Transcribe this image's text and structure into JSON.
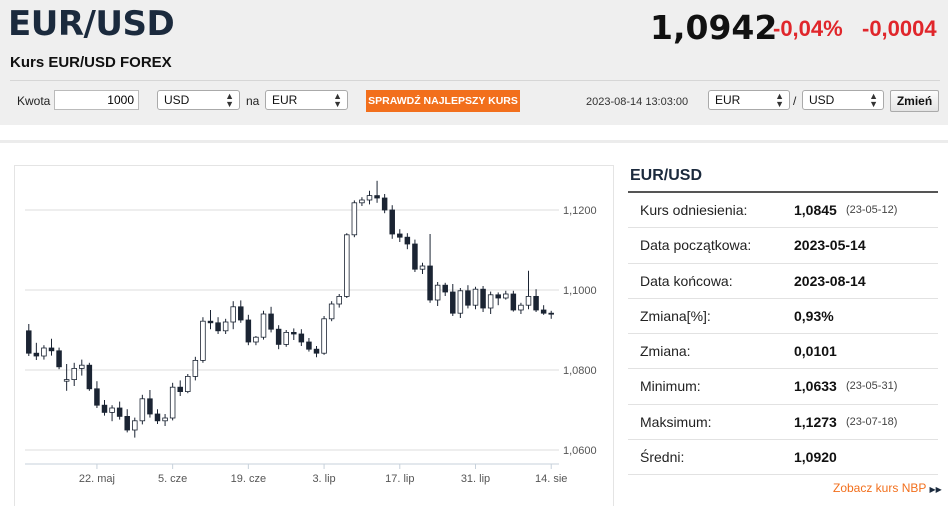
{
  "header": {
    "pair": "EUR/USD",
    "subtitle": "Kurs EUR/USD FOREX",
    "rate": "1,0942",
    "change_pct": "-0,04%",
    "change_abs": "-0,0004"
  },
  "converter": {
    "amount_label": "Kwota",
    "amount_value": "1000",
    "from_currency": "USD",
    "to_label": "na",
    "to_currency": "EUR",
    "check_button": "SPRAWDŹ NAJLEPSZY KURS",
    "timestamp": "2023-08-14 13:03:00",
    "pair_from": "EUR",
    "pair_sep": "/",
    "pair_to": "USD",
    "change_button": "Zmień"
  },
  "stats": {
    "title": "EUR/USD",
    "rows": [
      {
        "label": "Kurs odniesienia:",
        "value": "1,0845",
        "date": "(23-05-12)"
      },
      {
        "label": "Data początkowa:",
        "value": "2023-05-14",
        "date": ""
      },
      {
        "label": "Data końcowa:",
        "value": "2023-08-14",
        "date": ""
      },
      {
        "label": "Zmiana[%]:",
        "value": "0,93%",
        "date": ""
      },
      {
        "label": "Zmiana:",
        "value": "0,0101",
        "date": ""
      },
      {
        "label": "Minimum:",
        "value": "1,0633",
        "date": "(23-05-31)"
      },
      {
        "label": "Maksimum:",
        "value": "1,1273",
        "date": "(23-07-18)"
      },
      {
        "label": "Średni:",
        "value": "1,0920",
        "date": ""
      }
    ],
    "link": "Zobacz kurs NBP",
    "link_icon": "double-chevron-right-icon"
  },
  "colors": {
    "accent": "#f26f1c",
    "negative": "#e0262b",
    "candle_down": "#1b2433",
    "candle_up": "#ffffff"
  },
  "chart_data": {
    "type": "candlestick",
    "y_ticks": [
      "1,0600",
      "1,0800",
      "1,1000",
      "1,1200"
    ],
    "y_tick_values": [
      1.06,
      1.08,
      1.1,
      1.12
    ],
    "ylim": [
      1.0565,
      1.1285
    ],
    "x_tick_labels": [
      "22. maj",
      "5. cze",
      "19. cze",
      "3. lip",
      "17. lip",
      "31. lip",
      "14. sie"
    ],
    "x_tick_index": [
      9,
      19,
      29,
      39,
      49,
      59,
      69
    ],
    "grid": true,
    "candles": [
      [
        1.0898,
        1.0915,
        1.0835,
        1.0842
      ],
      [
        1.0842,
        1.0868,
        1.0825,
        1.0835
      ],
      [
        1.0835,
        1.0862,
        1.0826,
        1.0855
      ],
      [
        1.0855,
        1.0878,
        1.0836,
        1.0848
      ],
      [
        1.0848,
        1.0856,
        1.0802,
        1.0808
      ],
      [
        1.0772,
        1.0815,
        1.0748,
        1.0776
      ],
      [
        1.0776,
        1.0818,
        1.076,
        1.0804
      ],
      [
        1.0804,
        1.0826,
        1.0786,
        1.0812
      ],
      [
        1.0812,
        1.0818,
        1.0748,
        1.0753
      ],
      [
        1.0753,
        1.0772,
        1.0705,
        1.0712
      ],
      [
        1.0712,
        1.0725,
        1.0686,
        1.0694
      ],
      [
        1.0694,
        1.0712,
        1.0672,
        1.0705
      ],
      [
        1.0705,
        1.0721,
        1.0676,
        1.0684
      ],
      [
        1.0684,
        1.0702,
        1.0644,
        1.065
      ],
      [
        1.065,
        1.0681,
        1.0631,
        1.0673
      ],
      [
        1.0673,
        1.0738,
        1.0664,
        1.0728
      ],
      [
        1.0728,
        1.075,
        1.0681,
        1.069
      ],
      [
        1.069,
        1.0702,
        1.0665,
        1.0673
      ],
      [
        1.0673,
        1.069,
        1.066,
        1.068
      ],
      [
        1.068,
        1.0768,
        1.0674,
        1.0757
      ],
      [
        1.0757,
        1.0774,
        1.0735,
        1.0746
      ],
      [
        1.0746,
        1.079,
        1.0742,
        1.0784
      ],
      [
        1.0784,
        1.0833,
        1.0774,
        1.0824
      ],
      [
        1.0824,
        1.0932,
        1.0818,
        1.0922
      ],
      [
        1.0922,
        1.095,
        1.0902,
        1.0918
      ],
      [
        1.0918,
        1.0932,
        1.089,
        1.0898
      ],
      [
        1.0898,
        1.0928,
        1.089,
        1.092
      ],
      [
        1.092,
        1.0972,
        1.0902,
        1.0958
      ],
      [
        1.0958,
        1.0974,
        1.0918,
        1.0925
      ],
      [
        1.0925,
        1.0938,
        1.0862,
        1.087
      ],
      [
        1.087,
        1.0885,
        1.0862,
        1.0882
      ],
      [
        1.0882,
        1.0948,
        1.0876,
        1.094
      ],
      [
        1.094,
        1.0958,
        1.0894,
        1.0902
      ],
      [
        1.0902,
        1.0912,
        1.0852,
        1.0864
      ],
      [
        1.0864,
        1.09,
        1.0858,
        1.0894
      ],
      [
        1.0894,
        1.0904,
        1.0875,
        1.089
      ],
      [
        1.089,
        1.0902,
        1.086,
        1.087
      ],
      [
        1.087,
        1.088,
        1.0846,
        1.0852
      ],
      [
        1.0852,
        1.086,
        1.0832,
        1.0842
      ],
      [
        1.0842,
        1.0935,
        1.0838,
        1.0928
      ],
      [
        1.0928,
        1.0972,
        1.0922,
        1.0965
      ],
      [
        1.0965,
        1.099,
        1.0956,
        1.0984
      ],
      [
        1.0984,
        1.1142,
        1.098,
        1.1138
      ],
      [
        1.1138,
        1.1224,
        1.1132,
        1.1218
      ],
      [
        1.1218,
        1.1232,
        1.121,
        1.1225
      ],
      [
        1.1225,
        1.1248,
        1.1214,
        1.1236
      ],
      [
        1.1236,
        1.1273,
        1.1218,
        1.123
      ],
      [
        1.123,
        1.124,
        1.1192,
        1.12
      ],
      [
        1.12,
        1.1212,
        1.1128,
        1.114
      ],
      [
        1.114,
        1.1152,
        1.112,
        1.1132
      ],
      [
        1.1132,
        1.1142,
        1.1102,
        1.1115
      ],
      [
        1.1115,
        1.1126,
        1.1045,
        1.1052
      ],
      [
        1.1052,
        1.1068,
        1.104,
        1.106
      ],
      [
        1.106,
        1.114,
        1.0968,
        1.0975
      ],
      [
        1.0975,
        1.102,
        1.096,
        1.1012
      ],
      [
        1.1012,
        1.1018,
        1.0985,
        1.0995
      ],
      [
        1.0995,
        1.1015,
        1.0935,
        1.0942
      ],
      [
        1.0942,
        1.1005,
        1.093,
        1.0998
      ],
      [
        1.0998,
        1.1012,
        1.0954,
        1.0962
      ],
      [
        1.0962,
        1.1008,
        1.0952,
        1.1002
      ],
      [
        1.1002,
        1.101,
        1.0945,
        1.0955
      ],
      [
        1.0955,
        1.0996,
        1.094,
        1.0988
      ],
      [
        1.0988,
        1.0994,
        1.0962,
        1.098
      ],
      [
        1.098,
        1.0998,
        1.0976,
        1.099
      ],
      [
        1.099,
        1.0998,
        1.0946,
        1.095
      ],
      [
        1.095,
        1.0968,
        1.094,
        1.0962
      ],
      [
        1.0962,
        1.1048,
        1.0952,
        1.0984
      ],
      [
        1.0984,
        1.1002,
        1.0945,
        1.095
      ],
      [
        1.095,
        1.0962,
        1.0938,
        1.0942
      ],
      [
        1.0942,
        1.0948,
        1.0928,
        1.094
      ]
    ]
  }
}
